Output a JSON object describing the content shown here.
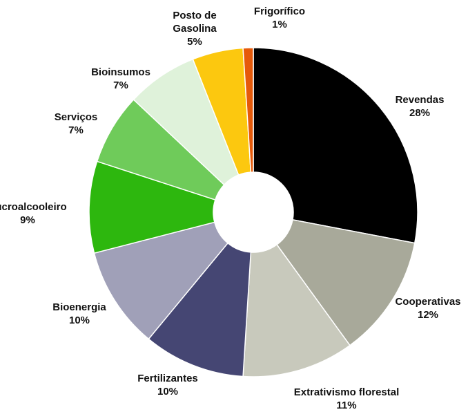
{
  "chart_data": {
    "type": "donut",
    "categories": [
      "Revendas",
      "Cooperativas",
      "Extrativismo florestal",
      "Fertilizantes",
      "Bioenergia",
      "Sucroalcooleiro",
      "Serviços",
      "Bioinsumos",
      "Posto de\nGasolina",
      "Frigorífico"
    ],
    "values": [
      28,
      12,
      11,
      10,
      10,
      9,
      7,
      7,
      5,
      1
    ],
    "value_labels": [
      "28%",
      "12%",
      "11%",
      "10%",
      "10%",
      "9%",
      "7%",
      "7%",
      "5%",
      "1%"
    ],
    "colors": [
      "#000000",
      "#a8a99a",
      "#c8c9bc",
      "#454673",
      "#a0a0b8",
      "#2db70e",
      "#6fcb5a",
      "#dff2da",
      "#fcc80f",
      "#e65a0a"
    ]
  }
}
